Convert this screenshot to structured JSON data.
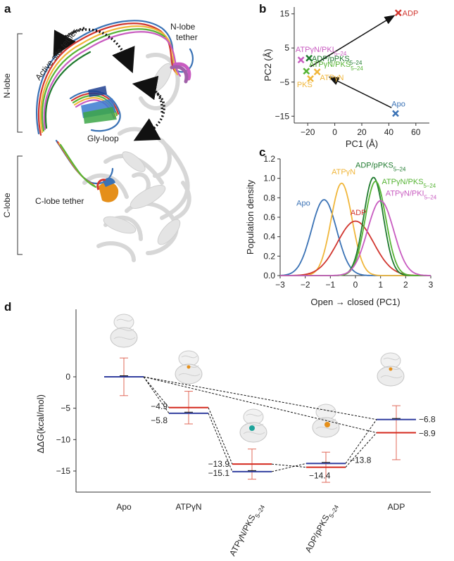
{
  "panels": {
    "a": {
      "letter": "a",
      "labels": {
        "n_lobe": "N-lobe",
        "c_lobe": "C-lobe",
        "active_site_tether": "Active site tether",
        "n_lobe_tether_1": "N-lobe",
        "n_lobe_tether_2": "tether",
        "gly_loop": "Gly-loop",
        "c_lobe_tether": "C-lobe tether"
      }
    },
    "b": {
      "letter": "b"
    },
    "c": {
      "letter": "c"
    },
    "d": {
      "letter": "d"
    }
  },
  "colors": {
    "Apo": "#3a72b5",
    "ADP": "#d1362f",
    "ATPgN": "#f0b63a",
    "PKS": "#f0b63a",
    "ADP_pPKS": "#1f7a2e",
    "ATPgN_PKS": "#57b435",
    "ATPgN_PKI": "#c85bc0",
    "red_level": "#d42a1e",
    "blue_level": "#3340a0"
  },
  "chart_data": [
    {
      "id": "pca",
      "type": "scatter",
      "xlabel": "PC1 (Å)",
      "ylabel": "PC2 (Å)",
      "xlim": [
        -30,
        70
      ],
      "ylim": [
        -17,
        17
      ],
      "xticks": [
        "−20",
        "0",
        "20",
        "40",
        "60"
      ],
      "xtick_values": [
        -20,
        0,
        20,
        40,
        60
      ],
      "yticks": [
        "15",
        "5",
        "−5",
        "−15"
      ],
      "ytick_values": [
        15,
        5,
        -5,
        -15
      ],
      "points": [
        {
          "name": "ADP",
          "x": 47,
          "y": 15.3,
          "color": "#d1362f"
        },
        {
          "name": "Apo",
          "x": 45,
          "y": -14.2,
          "color": "#3a72b5"
        },
        {
          "name": "ATPγN/PKI5–24",
          "x": -25,
          "y": 1.5,
          "color": "#c85bc0"
        },
        {
          "name": "ADP/pPKS5–24",
          "x": -19,
          "y": 2.0,
          "color": "#1f7a2e"
        },
        {
          "name": "ATPγN/PKS5–24",
          "x": -21,
          "y": -1.8,
          "color": "#57b435"
        },
        {
          "name": "ATPγN",
          "x": -13,
          "y": -2.0,
          "color": "#f0b63a"
        },
        {
          "name": "PKS",
          "x": -18,
          "y": -4.0,
          "color": "#f0b63a"
        }
      ],
      "labels": {
        "ADP": "ADP",
        "Apo": "Apo",
        "ATPgN_PKI": "ATPγN/PKI",
        "ATPgN_PKI_sub": "5–24",
        "ADP_pPKS": "ADP/pPKS",
        "ADP_pPKS_sub": "5–24",
        "ATPgN_PKS": "ATPγN/PKS",
        "ATPgN_PKS_sub": "5–24",
        "ATPgN": "ATPγN",
        "PKS": "PKS"
      }
    },
    {
      "id": "density",
      "type": "line",
      "xlabel": "Open → closed (PC1)",
      "ylabel": "Population density",
      "xlim": [
        -3,
        3
      ],
      "ylim": [
        0,
        1.2
      ],
      "xticks": [
        "−3",
        "−2",
        "−1",
        "0",
        "1",
        "2",
        "3"
      ],
      "xtick_values": [
        -3,
        -2,
        -1,
        0,
        1,
        2,
        3
      ],
      "yticks": [
        "0.0",
        "0.2",
        "0.4",
        "0.6",
        "0.8",
        "1.0",
        "1.2"
      ],
      "ytick_values": [
        0,
        0.2,
        0.4,
        0.6,
        0.8,
        1.0,
        1.2
      ],
      "series": [
        {
          "name": "Apo",
          "mu": -1.25,
          "sigma": 0.5,
          "peak": 0.78,
          "color": "#3a72b5"
        },
        {
          "name": "ATPγN",
          "mu": -0.55,
          "sigma": 0.42,
          "peak": 0.95,
          "color": "#f0b63a"
        },
        {
          "name": "ADP",
          "mu": 0.0,
          "sigma": 0.72,
          "peak": 0.56,
          "color": "#d1362f"
        },
        {
          "name": "ADP/pPKS5–24",
          "mu": 0.72,
          "sigma": 0.39,
          "peak": 1.01,
          "color": "#1f7a2e"
        },
        {
          "name": "ATPγN/PKS5–24",
          "mu": 0.8,
          "sigma": 0.41,
          "peak": 0.97,
          "color": "#57b435"
        },
        {
          "name": "ATPγN/PKI5–24",
          "mu": 1.0,
          "sigma": 0.52,
          "peak": 0.77,
          "color": "#c85bc0"
        }
      ],
      "labels": {
        "Apo": "Apo",
        "ATPgN": "ATPγN",
        "ADP": "ADP",
        "ADP_pPKS": "ADP/pPKS",
        "ADP_pPKS_sub": "5–24",
        "ATPgN_PKS": "ATPγN/PKS",
        "ATPgN_PKS_sub": "5–24",
        "ATPgN_PKI": "ATPγN/PKI",
        "ATPgN_PKI_sub": "5–24"
      }
    },
    {
      "id": "free_energy",
      "type": "line",
      "ylabel": "ΔΔG(kcal/mol)",
      "ylim": [
        -18,
        2
      ],
      "yticks": [
        "0",
        "−5",
        "−10",
        "−15"
      ],
      "ytick_values": [
        0,
        -5,
        -10,
        -15
      ],
      "categories": [
        "Apo",
        "ATPγN",
        "ATPγN/PKS5–24",
        "ADP/pPKS5–24",
        "ADP"
      ],
      "category_labels": [
        {
          "text": "Apo",
          "sub": ""
        },
        {
          "text": "ATPγN",
          "sub": ""
        },
        {
          "text": "ATPγN/PKS",
          "sub": "5–24"
        },
        {
          "text": "ADP/pPKS",
          "sub": "5–24"
        },
        {
          "text": "ADP",
          "sub": ""
        }
      ],
      "series": [
        {
          "name": "red",
          "values": [
            0,
            -4.9,
            -13.9,
            -14.4,
            -8.9
          ],
          "labels": [
            "",
            "−4.9",
            "−13.9",
            "−14.4",
            "−8.9"
          ],
          "errors": [
            3.0,
            2.6,
            2.4,
            2.4,
            4.3
          ]
        },
        {
          "name": "blue",
          "values": [
            0,
            -5.8,
            -15.1,
            -13.8,
            -6.8
          ],
          "labels": [
            "",
            "−5.8",
            "−15.1",
            "−13.8",
            "−6.8"
          ],
          "errors": [
            0.1,
            0.1,
            0.1,
            0.1,
            0.1
          ]
        }
      ]
    }
  ]
}
